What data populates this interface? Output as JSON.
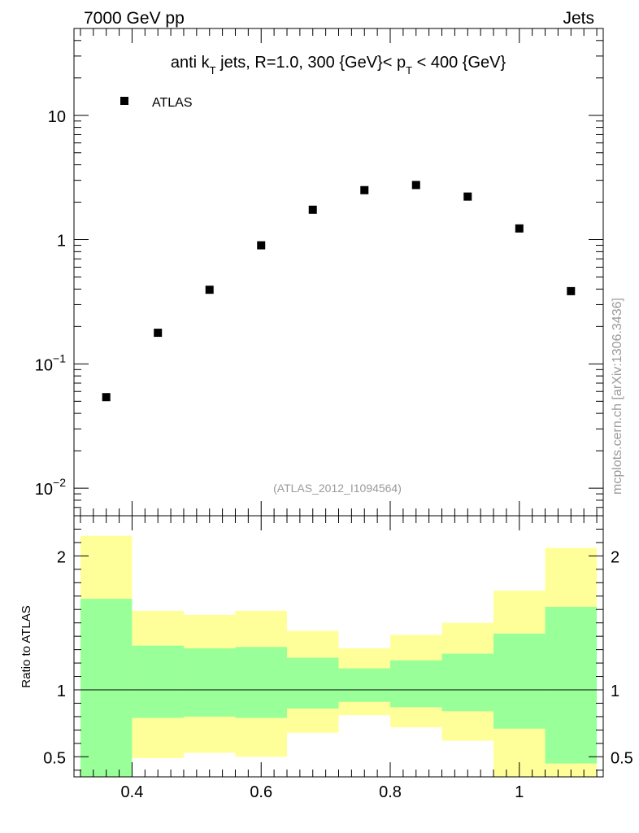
{
  "header": {
    "left": "7000 GeV pp",
    "right": "Jets"
  },
  "side_label": "mcplots.cern.ch [arXiv:1306.3436]",
  "chart_data": [
    {
      "type": "scatter",
      "title_parts": {
        "a": "anti k",
        "a_sub": "T",
        "b": " jets, R=1.0,  300 {GeV}< p",
        "b_sub": "T",
        "c": " < 400 {GeV}"
      },
      "legend": "ATLAS",
      "legend_placement": "top-left",
      "analysis_label": "(ATLAS_2012_I1094564)",
      "yscale": "log",
      "ylim": [
        0.006,
        50
      ],
      "xlim": [
        0.31,
        1.13
      ],
      "y_ticks": [
        {
          "v": 0.01,
          "base": "10",
          "exp": "−2"
        },
        {
          "v": 0.1,
          "base": "10",
          "exp": "−1"
        },
        {
          "v": 1,
          "base": "1",
          "exp": ""
        },
        {
          "v": 10,
          "base": "10",
          "exp": ""
        }
      ],
      "series": [
        {
          "name": "ATLAS",
          "x": [
            0.36,
            0.44,
            0.52,
            0.6,
            0.68,
            0.76,
            0.84,
            0.92,
            1.0,
            1.08
          ],
          "y": [
            0.054,
            0.178,
            0.395,
            0.9,
            1.74,
            2.5,
            2.75,
            2.22,
            1.23,
            0.385
          ]
        }
      ]
    },
    {
      "type": "area",
      "ylabel": "Ratio to ATLAS",
      "ylim": [
        0.35,
        2.3
      ],
      "xlim": [
        0.31,
        1.13
      ],
      "y_ticks": [
        {
          "v": 0.5,
          "label": "0.5"
        },
        {
          "v": 1,
          "label": "1"
        },
        {
          "v": 2,
          "label": "2"
        }
      ],
      "x_ticks": [
        {
          "v": 0.4,
          "label": "0.4"
        },
        {
          "v": 0.6,
          "label": "0.6"
        },
        {
          "v": 0.8,
          "label": "0.8"
        },
        {
          "v": 1.0,
          "label": "1"
        }
      ],
      "reference_line": 1,
      "bins": [
        {
          "lo": 0.32,
          "hi": 0.4,
          "yellow": [
            0.35,
            2.15
          ],
          "green": [
            0.35,
            1.68
          ]
        },
        {
          "lo": 0.4,
          "hi": 0.48,
          "yellow": [
            0.49,
            1.59
          ],
          "green": [
            0.79,
            1.33
          ]
        },
        {
          "lo": 0.48,
          "hi": 0.56,
          "yellow": [
            0.53,
            1.56
          ],
          "green": [
            0.8,
            1.31
          ]
        },
        {
          "lo": 0.56,
          "hi": 0.64,
          "yellow": [
            0.5,
            1.59
          ],
          "green": [
            0.79,
            1.32
          ]
        },
        {
          "lo": 0.64,
          "hi": 0.72,
          "yellow": [
            0.68,
            1.44
          ],
          "green": [
            0.86,
            1.24
          ]
        },
        {
          "lo": 0.72,
          "hi": 0.8,
          "yellow": [
            0.81,
            1.31
          ],
          "green": [
            0.91,
            1.16
          ]
        },
        {
          "lo": 0.8,
          "hi": 0.88,
          "yellow": [
            0.72,
            1.41
          ],
          "green": [
            0.87,
            1.22
          ]
        },
        {
          "lo": 0.88,
          "hi": 0.96,
          "yellow": [
            0.62,
            1.5
          ],
          "green": [
            0.84,
            1.27
          ]
        },
        {
          "lo": 0.96,
          "hi": 1.04,
          "yellow": [
            0.35,
            1.74
          ],
          "green": [
            0.71,
            1.42
          ]
        },
        {
          "lo": 1.04,
          "hi": 1.12,
          "yellow": [
            0.35,
            2.06
          ],
          "green": [
            0.45,
            1.62
          ]
        }
      ],
      "colors": {
        "yellow": "#ffff99",
        "green": "#99ff99"
      }
    }
  ]
}
